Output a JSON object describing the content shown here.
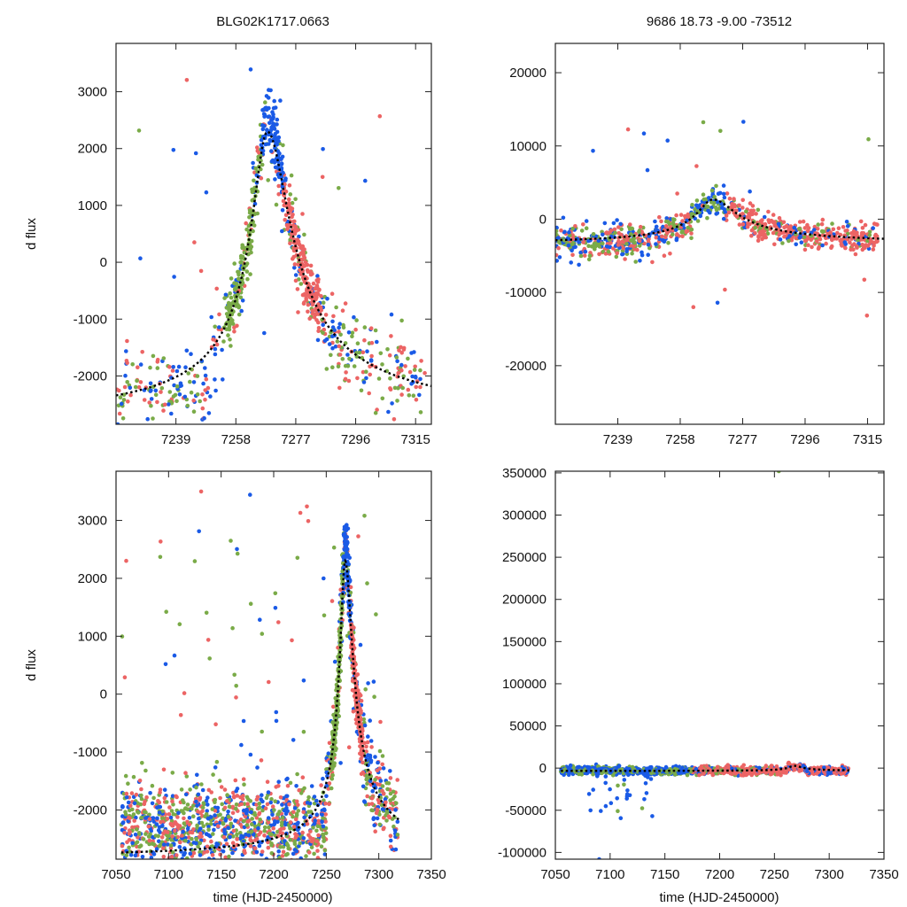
{
  "colors": {
    "green": "#7aab48",
    "blue": "#1a5ae6",
    "red": "#ec6464",
    "model": "#000000"
  },
  "chart_data": [
    {
      "id": "top-left",
      "type": "scatter",
      "title": "BLG02K1717.0663",
      "xlabel": "",
      "ylabel": "d flux",
      "xlim": [
        7220,
        7320
      ],
      "ylim": [
        -2850,
        3850
      ],
      "xticks": [
        7239,
        7258,
        7277,
        7296,
        7315
      ],
      "yticks": [
        -2000,
        -1000,
        0,
        1000,
        2000,
        3000
      ],
      "series": [
        {
          "name": "green",
          "color": "#7aab48"
        },
        {
          "name": "blue",
          "color": "#1a5ae6"
        },
        {
          "name": "red",
          "color": "#ec6464"
        }
      ],
      "model": {
        "name": "model fit",
        "style": "dotted",
        "color": "#000000"
      }
    },
    {
      "id": "top-right",
      "type": "scatter",
      "title": "9686  18.73  -9.00  -73512",
      "xlabel": "",
      "ylabel": "",
      "xlim": [
        7220,
        7320
      ],
      "ylim": [
        -28000,
        24000
      ],
      "xticks": [
        7239,
        7258,
        7277,
        7296,
        7315
      ],
      "yticks": [
        -20000,
        -10000,
        0,
        10000,
        20000
      ],
      "series": [
        {
          "name": "green",
          "color": "#7aab48"
        },
        {
          "name": "blue",
          "color": "#1a5ae6"
        },
        {
          "name": "red",
          "color": "#ec6464"
        }
      ],
      "model": {
        "name": "model fit",
        "style": "dotted",
        "color": "#000000"
      }
    },
    {
      "id": "bottom-left",
      "type": "scatter",
      "title": "",
      "xlabel": "time (HJD-2450000)",
      "ylabel": "d flux",
      "xlim": [
        7050,
        7350
      ],
      "ylim": [
        -2850,
        3850
      ],
      "xticks": [
        7050,
        7100,
        7150,
        7200,
        7250,
        7300,
        7350
      ],
      "yticks": [
        -2000,
        -1000,
        0,
        1000,
        2000,
        3000
      ],
      "series": [
        {
          "name": "green",
          "color": "#7aab48"
        },
        {
          "name": "blue",
          "color": "#1a5ae6"
        },
        {
          "name": "red",
          "color": "#ec6464"
        }
      ],
      "model": {
        "name": "model fit",
        "style": "dotted",
        "color": "#000000"
      }
    },
    {
      "id": "bottom-right",
      "type": "scatter",
      "title": "",
      "xlabel": "time (HJD-2450000)",
      "ylabel": "",
      "xlim": [
        7050,
        7350
      ],
      "ylim": [
        -108000,
        352000
      ],
      "xticks": [
        7050,
        7100,
        7150,
        7200,
        7250,
        7300,
        7350
      ],
      "yticks": [
        -100000,
        -50000,
        0,
        50000,
        100000,
        150000,
        200000,
        250000,
        300000,
        350000
      ],
      "series": [
        {
          "name": "green",
          "color": "#7aab48"
        },
        {
          "name": "blue",
          "color": "#1a5ae6"
        },
        {
          "name": "red",
          "color": "#ec6464"
        }
      ],
      "model": {
        "name": "model fit",
        "style": "dotted",
        "color": "#000000"
      }
    }
  ]
}
